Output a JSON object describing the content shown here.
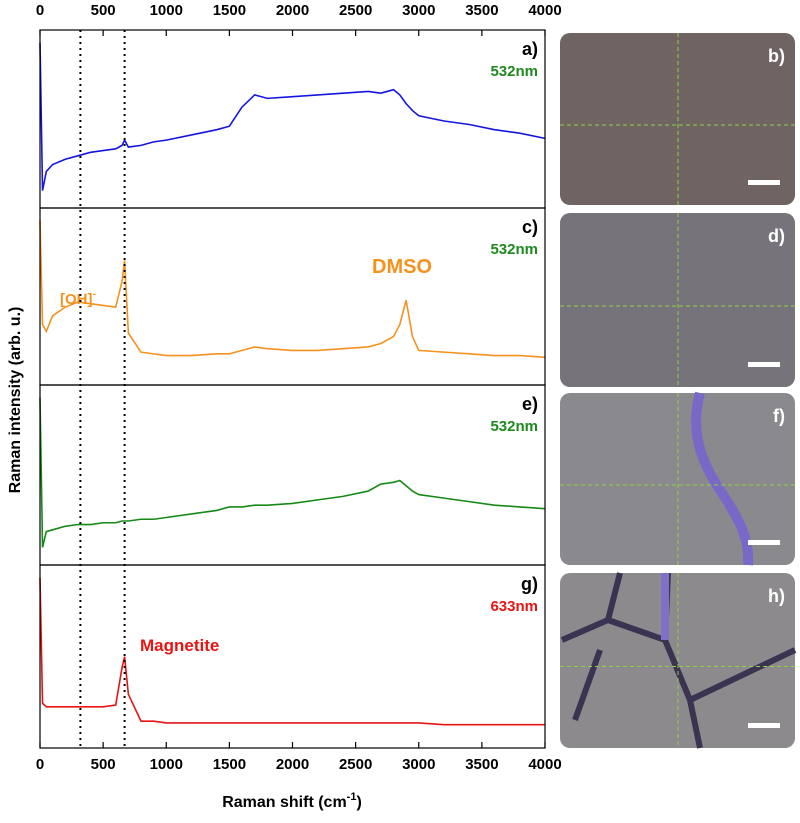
{
  "chart_data": {
    "type": "line",
    "xlim": [
      0,
      4000
    ],
    "xticks": [
      0,
      500,
      1000,
      1500,
      2000,
      2500,
      3000,
      3500,
      4000
    ],
    "xlabel": {
      "text": "Raman shift (cm",
      "sup": "-1",
      "tail": ")"
    },
    "ylabel": "Raman intensity (arb. u.)",
    "ylim": [
      0,
      100
    ],
    "reference_lines": [
      320,
      670
    ],
    "x": [
      0,
      20,
      50,
      100,
      200,
      300,
      400,
      500,
      600,
      650,
      670,
      700,
      800,
      900,
      1000,
      1200,
      1400,
      1500,
      1600,
      1700,
      1800,
      2000,
      2200,
      2400,
      2600,
      2700,
      2800,
      2850,
      2900,
      2950,
      3000,
      3200,
      3400,
      3600,
      3800,
      4000
    ],
    "panels": [
      {
        "label": "a)",
        "laser": "532nm",
        "laser_color": "#1e8a1e",
        "color": "#1515e0",
        "values": [
          95,
          10,
          21,
          25,
          28,
          30,
          32,
          33,
          34,
          36,
          39,
          35,
          36,
          38,
          39,
          42,
          45,
          47,
          58,
          65,
          63,
          64,
          65,
          66,
          67,
          66,
          68,
          65,
          60,
          56,
          53,
          50,
          48,
          45,
          43,
          40
        ]
      },
      {
        "label": "c)",
        "laser": "532nm",
        "laser_color": "#1e8a1e",
        "color": "#f5921e",
        "values": [
          95,
          35,
          31,
          40,
          45,
          48,
          47,
          46,
          45,
          60,
          72,
          30,
          19,
          18,
          17,
          17,
          18,
          18,
          20,
          22,
          21,
          20,
          20,
          21,
          22,
          24,
          28,
          35,
          49,
          28,
          20,
          19,
          18,
          17,
          17,
          16
        ],
        "annotations": [
          {
            "text": "[OH]",
            "sup": "-"
          },
          {
            "text": "DMSO"
          }
        ]
      },
      {
        "label": "e)",
        "laser": "532nm",
        "laser_color": "#1e8a1e",
        "color": "#168a16",
        "values": [
          95,
          10,
          19,
          20,
          22,
          23,
          23,
          24,
          24,
          25,
          25,
          25,
          26,
          26,
          27,
          29,
          31,
          33,
          33,
          34,
          34,
          35,
          37,
          39,
          42,
          46,
          47,
          48,
          45,
          42,
          40,
          38,
          36,
          34,
          33,
          32
        ]
      },
      {
        "label": "g)",
        "laser": "633nm",
        "laser_color": "#e81414",
        "color": "#e81414",
        "values": [
          95,
          25,
          23,
          23,
          23,
          23,
          23,
          23,
          24,
          45,
          51,
          30,
          15,
          15,
          14,
          14,
          14,
          14,
          14,
          14,
          14,
          14,
          14,
          14,
          14,
          14,
          14,
          14,
          14,
          14,
          14,
          13,
          13,
          13,
          13,
          13
        ],
        "annotations": [
          {
            "text": "Magnetite"
          }
        ]
      }
    ],
    "images": [
      {
        "label": "b)"
      },
      {
        "label": "d)"
      },
      {
        "label": "f)"
      },
      {
        "label": "h)"
      }
    ]
  }
}
